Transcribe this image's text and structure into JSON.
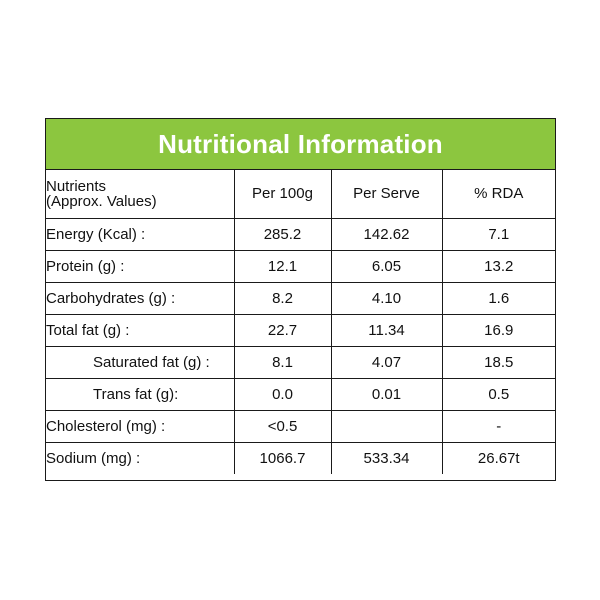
{
  "colors": {
    "header_green": "#8cc63f",
    "border": "#1a1a1a",
    "text": "#111111"
  },
  "title": "Nutritional Information",
  "columns": {
    "nutrients_line1": "Nutrients",
    "nutrients_line2": "(Approx. Values)",
    "per_100g": "Per 100g",
    "per_serve": "Per Serve",
    "rda": "% RDA"
  },
  "rows": [
    {
      "name": "Energy (Kcal) :",
      "per_100g": "285.2",
      "per_serve": "142.62",
      "rda": "7.1"
    },
    {
      "name": "Protein (g) :",
      "per_100g": "12.1",
      "per_serve": "6.05",
      "rda": "13.2"
    },
    {
      "name": "Carbohydrates (g) :",
      "per_100g": "8.2",
      "per_serve": "4.10",
      "rda": "1.6"
    },
    {
      "name": "Total fat (g) :",
      "per_100g": "22.7",
      "per_serve": "11.34",
      "rda": "16.9"
    },
    {
      "name": "Saturated fat (g) :",
      "per_100g": "8.1",
      "per_serve": "4.07",
      "rda": "18.5"
    },
    {
      "name": "Trans fat (g):",
      "per_100g": "0.0",
      "per_serve": "0.01",
      "rda": "0.5"
    },
    {
      "name": "Cholesterol (mg) :",
      "per_100g": "<0.5",
      "per_serve": "",
      "rda": "-"
    },
    {
      "name": "Sodium (mg) :",
      "per_100g": "1066.7",
      "per_serve": "533.34",
      "rda": "26.67t"
    }
  ]
}
